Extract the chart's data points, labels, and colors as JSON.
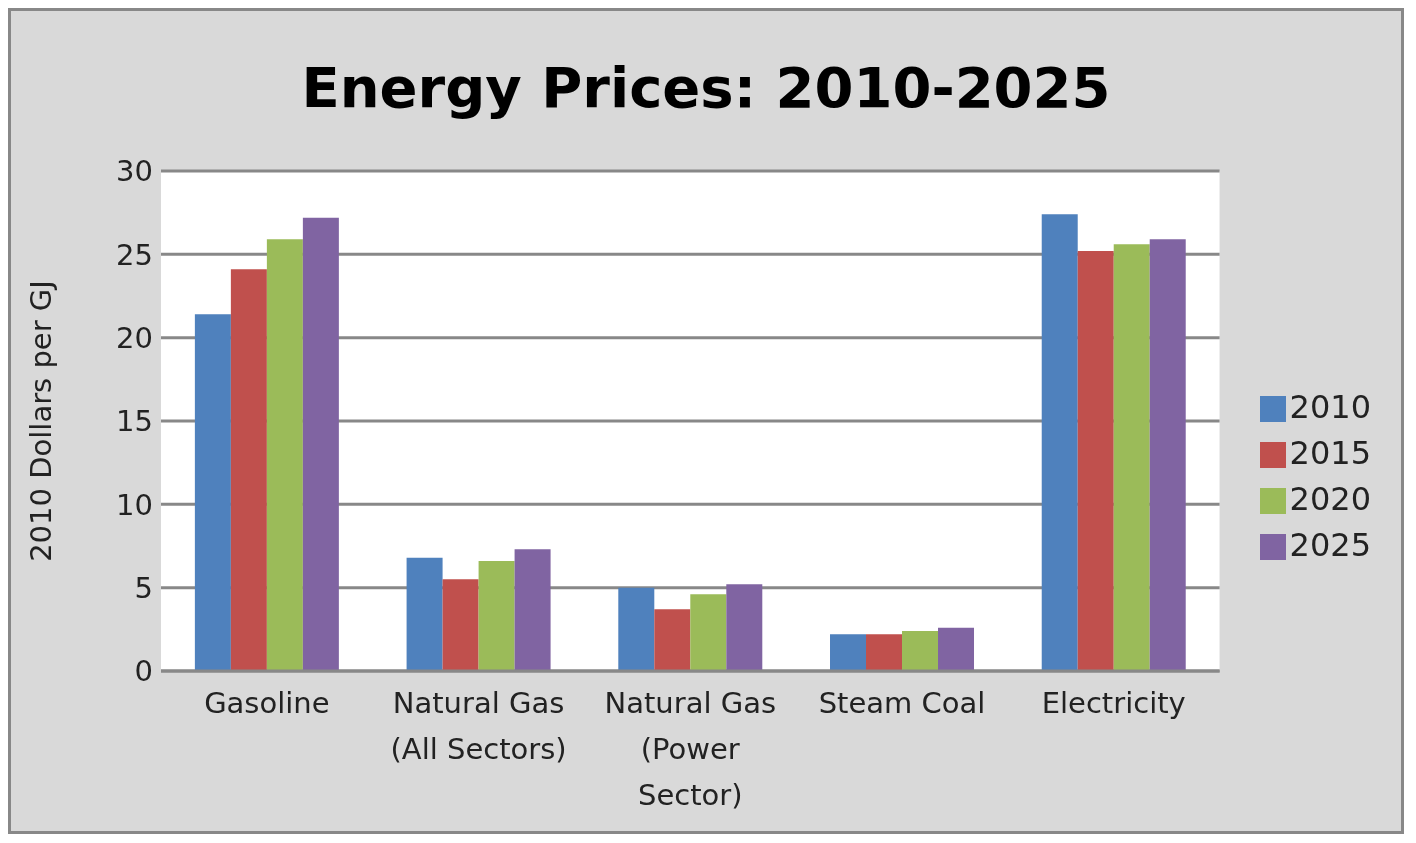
{
  "chart_data": {
    "type": "bar",
    "title": "Energy Prices: 2010-2025",
    "ylabel": "2010 Dollars per GJ",
    "categories": [
      "Gasoline",
      "Natural Gas (All Sectors)",
      "Natural Gas (Power Sector)",
      "Steam Coal",
      "Electricity"
    ],
    "series": [
      {
        "name": "2010",
        "color": "#4f81bd",
        "values": [
          21.4,
          6.8,
          5.0,
          2.2,
          27.4
        ]
      },
      {
        "name": "2015",
        "color": "#c0504d",
        "values": [
          24.1,
          5.5,
          3.7,
          2.2,
          25.2
        ]
      },
      {
        "name": "2020",
        "color": "#9bbb59",
        "values": [
          25.9,
          6.6,
          4.6,
          2.4,
          25.6
        ]
      },
      {
        "name": "2025",
        "color": "#8064a2",
        "values": [
          27.2,
          7.3,
          5.2,
          2.6,
          25.9
        ]
      }
    ],
    "ylim": [
      0,
      30
    ],
    "yticks": [
      0,
      5,
      10,
      15,
      20,
      25,
      30
    ],
    "grid": "y",
    "legend": "right"
  }
}
